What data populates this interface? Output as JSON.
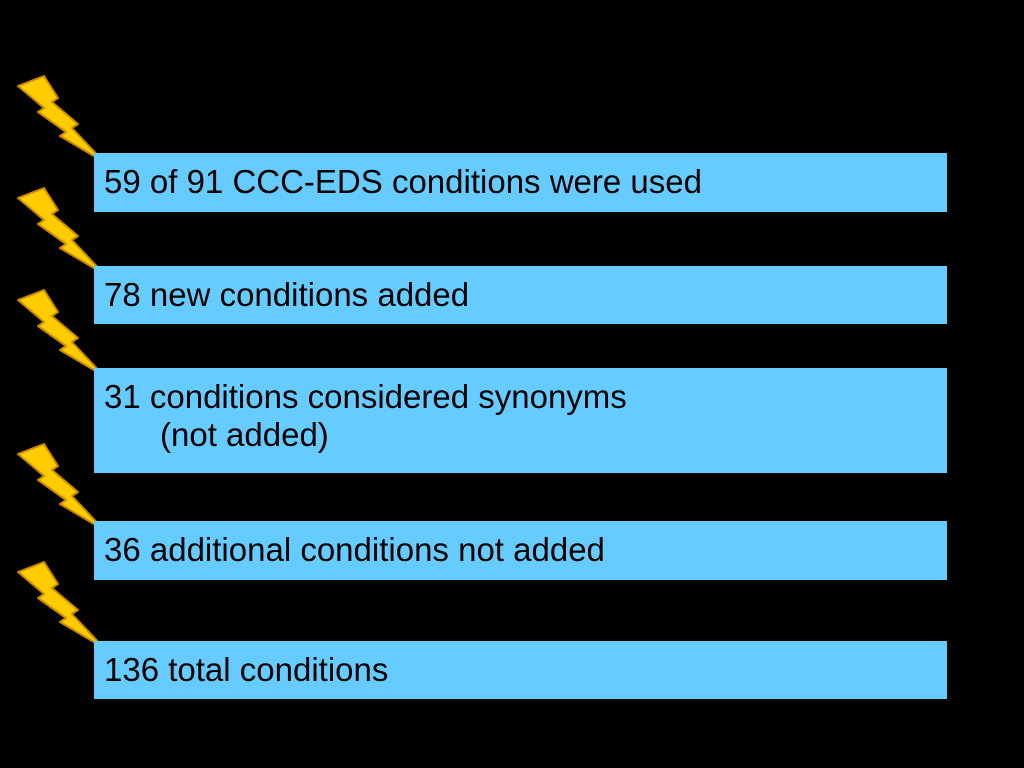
{
  "theme": {
    "background": "#000000",
    "box_color": "#66CCFF",
    "icon_fill": "#FFCC00",
    "icon_stroke": "#CC8800"
  },
  "items": [
    {
      "icon": "lightning-bolt-icon",
      "text": "59 of 91 CCC-EDS conditions were used"
    },
    {
      "icon": "lightning-bolt-icon",
      "text": "78 new conditions added"
    },
    {
      "icon": "lightning-bolt-icon",
      "text": "31 conditions considered synonyms",
      "text_line2": "(not added)"
    },
    {
      "icon": "lightning-bolt-icon",
      "text": "36 additional conditions not added"
    },
    {
      "icon": "lightning-bolt-icon",
      "text": "136 total conditions"
    }
  ]
}
